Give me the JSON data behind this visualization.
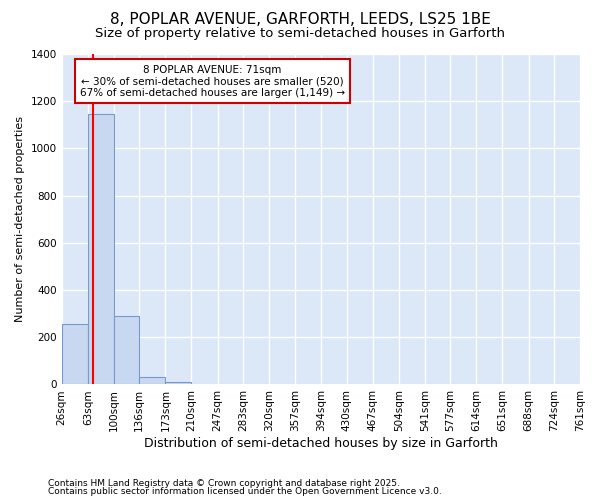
{
  "title_line1": "8, POPLAR AVENUE, GARFORTH, LEEDS, LS25 1BE",
  "title_line2": "Size of property relative to semi-detached houses in Garforth",
  "xlabel": "Distribution of semi-detached houses by size in Garforth",
  "ylabel": "Number of semi-detached properties",
  "footnote1": "Contains HM Land Registry data © Crown copyright and database right 2025.",
  "footnote2": "Contains public sector information licensed under the Open Government Licence v3.0.",
  "bar_edges": [
    26,
    63,
    100,
    136,
    173,
    210,
    247,
    283,
    320,
    357,
    394,
    430,
    467,
    504,
    541,
    577,
    614,
    651,
    688,
    724,
    761
  ],
  "bar_heights": [
    255,
    1145,
    290,
    30,
    10,
    0,
    0,
    0,
    0,
    0,
    0,
    0,
    0,
    0,
    0,
    0,
    0,
    0,
    0,
    0
  ],
  "bar_color": "#c8d8f0",
  "bar_edge_color": "#7799cc",
  "red_line_x": 71,
  "annotation_title": "8 POPLAR AVENUE: 71sqm",
  "annotation_line1": "← 30% of semi-detached houses are smaller (520)",
  "annotation_line2": "67% of semi-detached houses are larger (1,149) →",
  "annotation_box_color": "#ffffff",
  "annotation_box_edge": "#cc0000",
  "ylim": [
    0,
    1400
  ],
  "bg_color": "#ffffff",
  "plot_bg_color": "#dce8f8",
  "grid_color": "#ffffff",
  "title_fontsize": 11,
  "subtitle_fontsize": 9.5,
  "tick_label_size": 7.5,
  "ylabel_fontsize": 8,
  "xlabel_fontsize": 9,
  "annotation_fontsize": 7.5,
  "footnote_fontsize": 6.5
}
